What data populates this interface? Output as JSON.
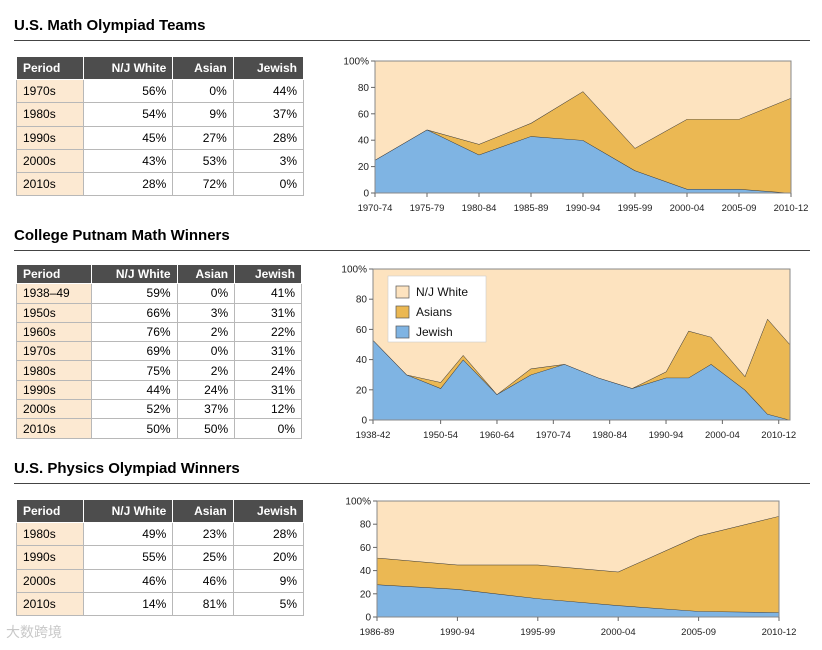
{
  "sections": [
    {
      "title": "U.S. Math Olympiad Teams",
      "table": {
        "headers": [
          "Period",
          "N/J White",
          "Asian",
          "Jewish"
        ],
        "rows": [
          [
            "1970s",
            "56%",
            "0%",
            "44%"
          ],
          [
            "1980s",
            "54%",
            "9%",
            "37%"
          ],
          [
            "1990s",
            "45%",
            "27%",
            "28%"
          ],
          [
            "2000s",
            "43%",
            "53%",
            "3%"
          ],
          [
            "2010s",
            "28%",
            "72%",
            "0%"
          ]
        ]
      }
    },
    {
      "title": "College Putnam Math Winners",
      "table": {
        "headers": [
          "Period",
          "N/J White",
          "Asian",
          "Jewish"
        ],
        "rows": [
          [
            "1938–49",
            "59%",
            "0%",
            "41%"
          ],
          [
            "1950s",
            "66%",
            "3%",
            "31%"
          ],
          [
            "1960s",
            "76%",
            "2%",
            "22%"
          ],
          [
            "1970s",
            "69%",
            "0%",
            "31%"
          ],
          [
            "1980s",
            "75%",
            "2%",
            "24%"
          ],
          [
            "1990s",
            "44%",
            "24%",
            "31%"
          ],
          [
            "2000s",
            "52%",
            "37%",
            "12%"
          ],
          [
            "2010s",
            "50%",
            "50%",
            "0%"
          ]
        ]
      }
    },
    {
      "title": "U.S. Physics Olympiad Winners",
      "table": {
        "headers": [
          "Period",
          "N/J White",
          "Asian",
          "Jewish"
        ],
        "rows": [
          [
            "1980s",
            "49%",
            "23%",
            "28%"
          ],
          [
            "1990s",
            "55%",
            "25%",
            "20%"
          ],
          [
            "2000s",
            "46%",
            "46%",
            "9%"
          ],
          [
            "2010s",
            "14%",
            "81%",
            "5%"
          ]
        ]
      }
    }
  ],
  "colors": {
    "white": "#fde3bf",
    "asian": "#ebb853",
    "jewish": "#7fb4e3",
    "grid": "#aaaaaa"
  },
  "chart_data": [
    {
      "type": "area",
      "title": "U.S. Math Olympiad Teams",
      "ylim": [
        0,
        100
      ],
      "ytick_labels": [
        "0",
        "20",
        "40",
        "60",
        "80",
        "100%"
      ],
      "x": [
        0,
        1,
        2,
        3,
        4,
        5,
        6,
        7,
        8
      ],
      "xtick_labels": [
        "1970-74",
        "1975-79",
        "1980-84",
        "1985-89",
        "1990-94",
        "1995-99",
        "2000-04",
        "2005-09",
        "2010-12"
      ],
      "series": [
        {
          "name": "Jewish",
          "values": [
            25,
            48,
            29,
            43,
            40,
            17,
            3,
            3,
            0
          ]
        },
        {
          "name": "Asians",
          "values": [
            0,
            0,
            8,
            10,
            37,
            17,
            53,
            53,
            72
          ]
        },
        {
          "name": "N/J White",
          "values": [
            75,
            52,
            63,
            47,
            23,
            66,
            44,
            44,
            28
          ]
        }
      ],
      "legend": null
    },
    {
      "type": "area",
      "title": "College Putnam Math Winners",
      "ylim": [
        0,
        100
      ],
      "ytick_labels": [
        "0",
        "20",
        "40",
        "60",
        "80",
        "100%"
      ],
      "x": [
        1938,
        1944,
        1950,
        1954,
        1960,
        1966,
        1972,
        1978,
        1984,
        1990,
        1994,
        1998,
        2004,
        2008,
        2012
      ],
      "xtick_positions": [
        1938,
        1950,
        1960,
        1970,
        1980,
        1990,
        2000,
        2010
      ],
      "xtick_labels": [
        "1938-42",
        "1950-54",
        "1960-64",
        "1970-74",
        "1980-84",
        "1990-94",
        "2000-04",
        "2010-12"
      ],
      "series": [
        {
          "name": "Jewish",
          "values": [
            53,
            30,
            21,
            40,
            17,
            30,
            37,
            28,
            21,
            28,
            28,
            37,
            20,
            4,
            0
          ]
        },
        {
          "name": "Asians",
          "values": [
            0,
            0,
            4,
            3,
            0,
            4,
            0,
            0,
            0,
            4,
            31,
            18,
            9,
            63,
            50
          ]
        },
        {
          "name": "N/J White",
          "values": [
            47,
            70,
            75,
            57,
            83,
            66,
            63,
            72,
            79,
            68,
            41,
            45,
            71,
            33,
            50
          ]
        }
      ],
      "legend": {
        "placement": "top-left",
        "entries": [
          "N/J White",
          "Asians",
          "Jewish"
        ]
      }
    },
    {
      "type": "area",
      "title": "U.S. Physics Olympiad Winners",
      "ylim": [
        0,
        100
      ],
      "ytick_labels": [
        "0",
        "20",
        "40",
        "60",
        "80",
        "100%"
      ],
      "x": [
        0,
        1,
        2,
        3,
        4,
        5
      ],
      "xtick_labels": [
        "1986-89",
        "1990-94",
        "1995-99",
        "2000-04",
        "2005-09",
        "2010-12"
      ],
      "series": [
        {
          "name": "Jewish",
          "values": [
            28,
            24,
            16,
            10,
            5,
            4
          ]
        },
        {
          "name": "Asians",
          "values": [
            23,
            21,
            29,
            29,
            65,
            83
          ]
        },
        {
          "name": "N/J White",
          "values": [
            49,
            55,
            55,
            61,
            30,
            13
          ]
        }
      ],
      "legend": null
    }
  ],
  "watermark": "大数跨境"
}
